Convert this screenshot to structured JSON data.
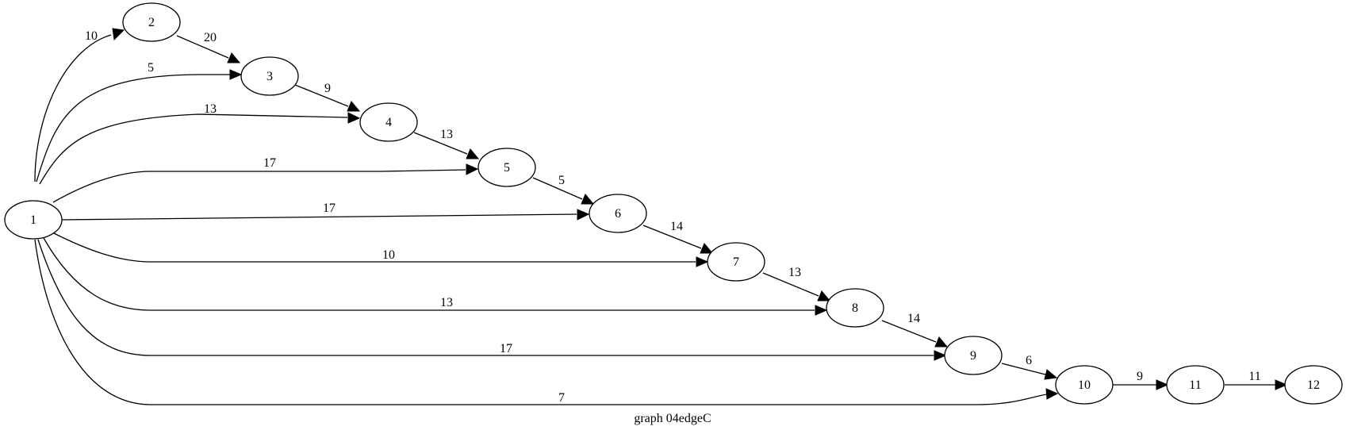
{
  "graph": {
    "title": "graph 04edgeC",
    "nodes": [
      {
        "id": "n1",
        "label": "1"
      },
      {
        "id": "n2",
        "label": "2"
      },
      {
        "id": "n3",
        "label": "3"
      },
      {
        "id": "n4",
        "label": "4"
      },
      {
        "id": "n5",
        "label": "5"
      },
      {
        "id": "n6",
        "label": "6"
      },
      {
        "id": "n7",
        "label": "7"
      },
      {
        "id": "n8",
        "label": "8"
      },
      {
        "id": "n9",
        "label": "9"
      },
      {
        "id": "n10",
        "label": "10"
      },
      {
        "id": "n11",
        "label": "11"
      },
      {
        "id": "n12",
        "label": "12"
      }
    ],
    "edges": [
      {
        "from": "1",
        "to": "2",
        "label": "10"
      },
      {
        "from": "1",
        "to": "3",
        "label": "5"
      },
      {
        "from": "1",
        "to": "4",
        "label": "13"
      },
      {
        "from": "1",
        "to": "5",
        "label": "17"
      },
      {
        "from": "1",
        "to": "6",
        "label": "17"
      },
      {
        "from": "1",
        "to": "7",
        "label": "10"
      },
      {
        "from": "1",
        "to": "8",
        "label": "13"
      },
      {
        "from": "1",
        "to": "9",
        "label": "17"
      },
      {
        "from": "1",
        "to": "10",
        "label": "7"
      },
      {
        "from": "2",
        "to": "3",
        "label": "20"
      },
      {
        "from": "3",
        "to": "4",
        "label": "9"
      },
      {
        "from": "4",
        "to": "5",
        "label": "13"
      },
      {
        "from": "5",
        "to": "6",
        "label": "5"
      },
      {
        "from": "6",
        "to": "7",
        "label": "14"
      },
      {
        "from": "7",
        "to": "8",
        "label": "13"
      },
      {
        "from": "8",
        "to": "9",
        "label": "14"
      },
      {
        "from": "9",
        "to": "10",
        "label": "6"
      },
      {
        "from": "10",
        "to": "11",
        "label": "9"
      },
      {
        "from": "11",
        "to": "12",
        "label": "11"
      }
    ]
  }
}
